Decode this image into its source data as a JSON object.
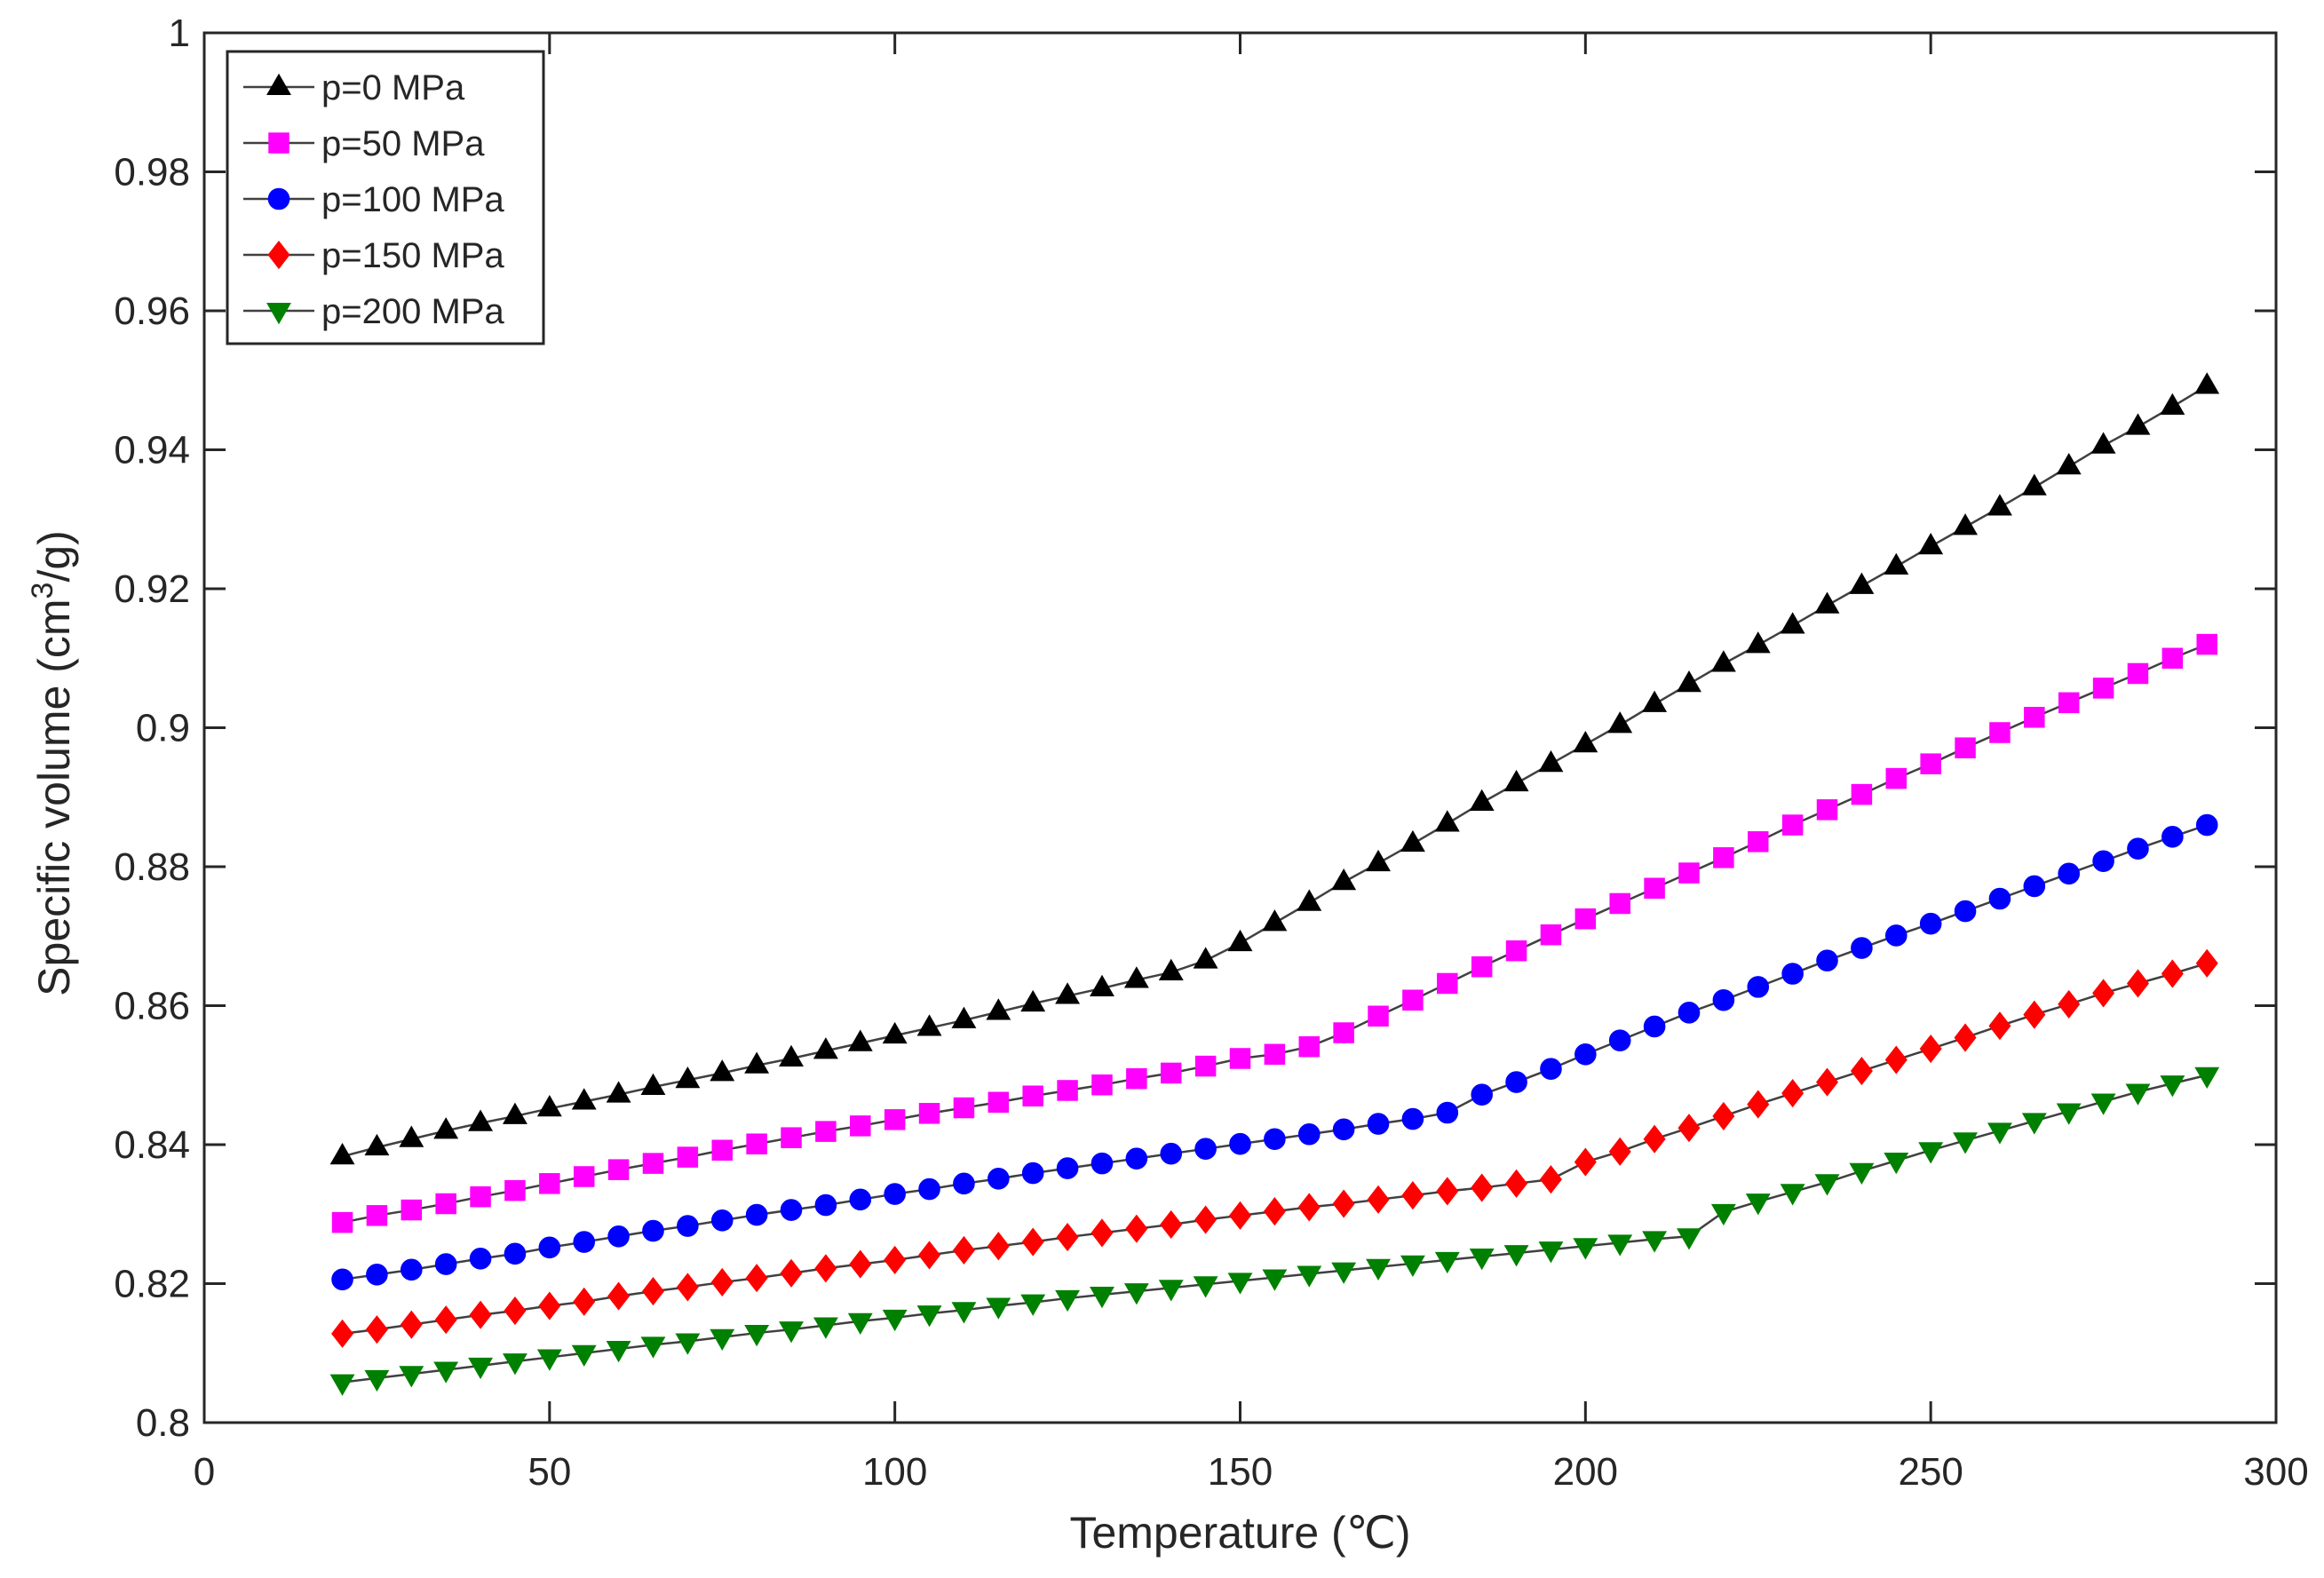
{
  "chart_data": {
    "type": "line",
    "title": "",
    "xlabel": "Temperature (℃)",
    "ylabel_main": "Specific volume (cm",
    "ylabel_sup": "3",
    "ylabel_end": "/g)",
    "xlim": [
      0,
      300
    ],
    "ylim": [
      0.8,
      1.0
    ],
    "xticks": [
      0,
      50,
      100,
      150,
      200,
      250,
      300
    ],
    "xtick_labels": [
      "0",
      "50",
      "100",
      "150",
      "200",
      "250",
      "300"
    ],
    "yticks": [
      0.8,
      0.82,
      0.84,
      0.86,
      0.88,
      0.9,
      0.92,
      0.94,
      0.96,
      0.98,
      1.0
    ],
    "ytick_labels": [
      "0.8",
      "0.82",
      "0.84",
      "0.86",
      "0.88",
      "0.9",
      "0.92",
      "0.94",
      "0.96",
      "0.98",
      "1"
    ],
    "grid": false,
    "legend_position": "top-left",
    "x": [
      20,
      25,
      30,
      35,
      40,
      45,
      50,
      55,
      60,
      65,
      70,
      75,
      80,
      85,
      90,
      95,
      100,
      105,
      110,
      115,
      120,
      125,
      130,
      135,
      140,
      145,
      150,
      155,
      160,
      165,
      170,
      175,
      180,
      185,
      190,
      195,
      200,
      205,
      210,
      215,
      220,
      225,
      230,
      235,
      240,
      245,
      250,
      255,
      260,
      265,
      270,
      275,
      280,
      285,
      290
    ],
    "series": [
      {
        "name": "p=0 MPa",
        "color": "#000000",
        "marker": "triangle-up",
        "values": [
          0.8383,
          0.8396,
          0.8408,
          0.842,
          0.8431,
          0.8441,
          0.8452,
          0.8462,
          0.8472,
          0.8483,
          0.8493,
          0.8503,
          0.8514,
          0.8524,
          0.8535,
          0.8546,
          0.8557,
          0.8568,
          0.8579,
          0.8591,
          0.8603,
          0.8614,
          0.8625,
          0.8637,
          0.8648,
          0.8665,
          0.869,
          0.8719,
          0.8748,
          0.8778,
          0.8805,
          0.8833,
          0.8862,
          0.8892,
          0.892,
          0.8948,
          0.8976,
          0.9004,
          0.9034,
          0.9063,
          0.9092,
          0.9119,
          0.9147,
          0.9176,
          0.9204,
          0.9232,
          0.9261,
          0.9289,
          0.9317,
          0.9346,
          0.9376,
          0.9406,
          0.9433,
          0.9462,
          0.9492
        ]
      },
      {
        "name": "p=50 MPa",
        "color": "#ff00ff",
        "marker": "square",
        "values": [
          0.8288,
          0.8298,
          0.8306,
          0.8315,
          0.8325,
          0.8334,
          0.8344,
          0.8354,
          0.8364,
          0.8373,
          0.8382,
          0.8392,
          0.8401,
          0.841,
          0.8419,
          0.8427,
          0.8436,
          0.8445,
          0.8453,
          0.8461,
          0.847,
          0.8478,
          0.8486,
          0.8495,
          0.8503,
          0.8513,
          0.8524,
          0.853,
          0.8541,
          0.8561,
          0.8585,
          0.8608,
          0.8632,
          0.8656,
          0.8679,
          0.8702,
          0.8725,
          0.8747,
          0.8769,
          0.8791,
          0.8813,
          0.8836,
          0.886,
          0.8882,
          0.8904,
          0.8927,
          0.8948,
          0.8971,
          0.8993,
          0.9015,
          0.9036,
          0.9057,
          0.9078,
          0.91,
          0.912
        ]
      },
      {
        "name": "p=100 MPa",
        "color": "#0000ff",
        "marker": "circle",
        "values": [
          0.8206,
          0.8213,
          0.822,
          0.8228,
          0.8236,
          0.8243,
          0.8252,
          0.826,
          0.8268,
          0.8276,
          0.8283,
          0.8291,
          0.8299,
          0.8306,
          0.8313,
          0.8321,
          0.8329,
          0.8336,
          0.8344,
          0.8351,
          0.8359,
          0.8366,
          0.8373,
          0.838,
          0.8387,
          0.8394,
          0.8401,
          0.8408,
          0.8415,
          0.8422,
          0.843,
          0.8437,
          0.8446,
          0.8472,
          0.849,
          0.8509,
          0.853,
          0.855,
          0.857,
          0.859,
          0.8608,
          0.8627,
          0.8646,
          0.8665,
          0.8683,
          0.8701,
          0.8718,
          0.8736,
          0.8754,
          0.8772,
          0.879,
          0.8808,
          0.8826,
          0.8843,
          0.886
        ]
      },
      {
        "name": "p=150 MPa",
        "color": "#ff0000",
        "marker": "diamond",
        "values": [
          0.8128,
          0.8134,
          0.8141,
          0.8148,
          0.8155,
          0.8161,
          0.8168,
          0.8174,
          0.8182,
          0.8189,
          0.8195,
          0.8202,
          0.8208,
          0.8215,
          0.8222,
          0.8228,
          0.8234,
          0.8241,
          0.8248,
          0.8254,
          0.826,
          0.8267,
          0.8273,
          0.8279,
          0.8285,
          0.8292,
          0.8298,
          0.8304,
          0.831,
          0.8315,
          0.8321,
          0.8327,
          0.8333,
          0.8338,
          0.8344,
          0.835,
          0.8375,
          0.839,
          0.8408,
          0.8424,
          0.8441,
          0.8458,
          0.8474,
          0.849,
          0.8506,
          0.8522,
          0.8538,
          0.8554,
          0.8571,
          0.8587,
          0.8602,
          0.8618,
          0.8632,
          0.8646,
          0.8661
        ]
      },
      {
        "name": "p=200 MPa",
        "color": "#008000",
        "marker": "triangle-down",
        "values": [
          0.8058,
          0.8064,
          0.807,
          0.8076,
          0.8082,
          0.8088,
          0.8094,
          0.81,
          0.8106,
          0.8112,
          0.8117,
          0.8123,
          0.8129,
          0.8134,
          0.814,
          0.8146,
          0.8151,
          0.8157,
          0.8162,
          0.8168,
          0.8173,
          0.8179,
          0.8184,
          0.8189,
          0.8194,
          0.8199,
          0.8204,
          0.8209,
          0.8214,
          0.8219,
          0.8224,
          0.8229,
          0.8234,
          0.8239,
          0.8244,
          0.8249,
          0.8254,
          0.8259,
          0.8264,
          0.8268,
          0.8303,
          0.8318,
          0.8332,
          0.8346,
          0.8362,
          0.8377,
          0.8392,
          0.8406,
          0.842,
          0.8434,
          0.8448,
          0.8462,
          0.8476,
          0.8488,
          0.85
        ]
      }
    ]
  }
}
